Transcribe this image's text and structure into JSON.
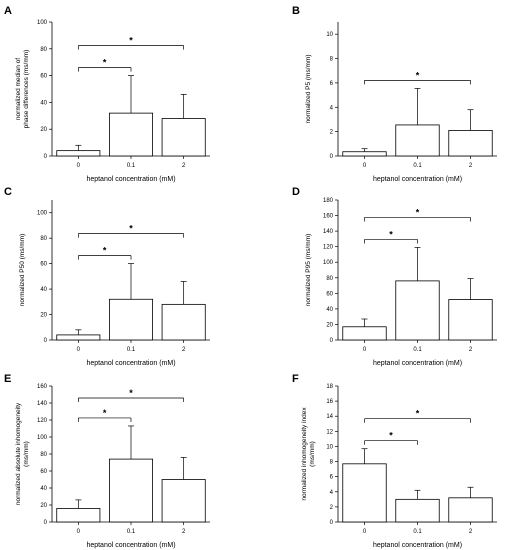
{
  "x_axis_label": "heptanol concentration (mM)",
  "categories": [
    "0",
    "0.1",
    "2"
  ],
  "significance_marker": "*",
  "colors": {
    "bar_fill": "#ffffff",
    "stroke": "#000000",
    "background": "#ffffff"
  },
  "chart_data": [
    {
      "panel": "A",
      "type": "bar",
      "ylabel": [
        "normalized median of",
        "phase differences (ms/mm)"
      ],
      "xlabel": "heptanol concentration (mM)",
      "categories": [
        "0",
        "0.1",
        "2"
      ],
      "values": [
        4,
        32,
        28
      ],
      "errors": [
        4,
        28,
        18
      ],
      "ylim": [
        0,
        100
      ],
      "yticks": [
        0,
        20,
        40,
        60,
        80,
        100
      ],
      "significance": [
        {
          "from": 0,
          "to": 1,
          "label": "*"
        },
        {
          "from": 0,
          "to": 2,
          "label": "*"
        }
      ]
    },
    {
      "panel": "B",
      "type": "bar",
      "ylabel": [
        "normalized P5 (ms/mm)"
      ],
      "xlabel": "heptanol concentration (mM)",
      "categories": [
        "0",
        "0.1",
        "2"
      ],
      "values": [
        0.35,
        2.55,
        2.1
      ],
      "errors": [
        0.25,
        3.0,
        1.7
      ],
      "ylim": [
        0,
        11
      ],
      "yticks": [
        0,
        2,
        4,
        6,
        8,
        10
      ],
      "significance": [
        {
          "from": 0,
          "to": 2,
          "label": "*"
        }
      ]
    },
    {
      "panel": "C",
      "type": "bar",
      "ylabel": [
        "normalized P50 (ms/mm)"
      ],
      "xlabel": "heptanol concentration (mM)",
      "categories": [
        "0",
        "0.1",
        "2"
      ],
      "values": [
        4,
        32,
        28
      ],
      "errors": [
        4,
        28,
        18
      ],
      "ylim": [
        0,
        110
      ],
      "yticks": [
        0,
        20,
        40,
        60,
        80,
        100
      ],
      "significance": [
        {
          "from": 0,
          "to": 1,
          "label": "*"
        },
        {
          "from": 0,
          "to": 2,
          "label": "*"
        }
      ]
    },
    {
      "panel": "D",
      "type": "bar",
      "ylabel": [
        "normalized P95 (ms/mm)"
      ],
      "xlabel": "heptanol concentration (mM)",
      "categories": [
        "0",
        "0.1",
        "2"
      ],
      "values": [
        17,
        76,
        52
      ],
      "errors": [
        10,
        43,
        27
      ],
      "ylim": [
        0,
        180
      ],
      "yticks": [
        0,
        20,
        40,
        60,
        80,
        100,
        120,
        140,
        160,
        180
      ],
      "significance": [
        {
          "from": 0,
          "to": 1,
          "label": "*"
        },
        {
          "from": 0,
          "to": 2,
          "label": "*"
        }
      ]
    },
    {
      "panel": "E",
      "type": "bar",
      "ylabel": [
        "normalized absolute inhomogeneity",
        "(ms/mm)"
      ],
      "xlabel": "heptanol concentration (mM)",
      "categories": [
        "0",
        "0.1",
        "2"
      ],
      "values": [
        16,
        74,
        50
      ],
      "errors": [
        10,
        39,
        26
      ],
      "ylim": [
        0,
        160
      ],
      "yticks": [
        0,
        20,
        40,
        60,
        80,
        100,
        120,
        140,
        160
      ],
      "significance": [
        {
          "from": 0,
          "to": 1,
          "label": "*"
        },
        {
          "from": 0,
          "to": 2,
          "label": "*"
        }
      ]
    },
    {
      "panel": "F",
      "type": "bar",
      "ylabel": [
        "normalized inhomogeneity index",
        "(ms/mm)"
      ],
      "xlabel": "heptanol concentration (mM)",
      "categories": [
        "0",
        "0.1",
        "2"
      ],
      "values": [
        7.7,
        3.0,
        3.2
      ],
      "errors": [
        2.0,
        1.2,
        1.4
      ],
      "ylim": [
        0,
        18
      ],
      "yticks": [
        0,
        2,
        4,
        6,
        8,
        10,
        12,
        14,
        16,
        18
      ],
      "significance": [
        {
          "from": 0,
          "to": 1,
          "label": "*"
        },
        {
          "from": 0,
          "to": 2,
          "label": "*"
        }
      ]
    }
  ]
}
